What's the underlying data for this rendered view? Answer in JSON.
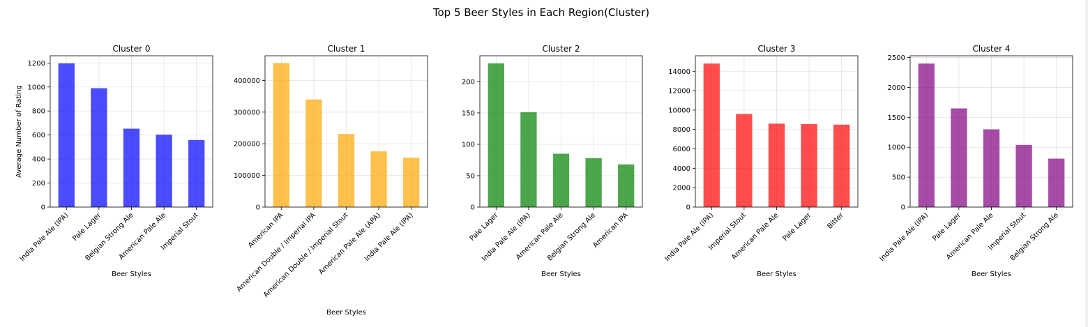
{
  "figure": {
    "title": "Top 5 Beer Styles in Each Region(Cluster)"
  },
  "chart_data": [
    {
      "type": "bar",
      "title": "Cluster 0",
      "xlabel": "Beer Styles",
      "ylabel": "Average Number of Rating",
      "color": "#0000ff",
      "ylim": [
        0,
        1260
      ],
      "yticks": [
        0,
        200,
        400,
        600,
        800,
        1000,
        1200
      ],
      "categories": [
        "India Pale Ale (IPA)",
        "Pale Lager",
        "Belgian Strong Ale",
        "American Pale Ale",
        "Imperial Stout"
      ],
      "values": [
        1197,
        990,
        653,
        603,
        558
      ],
      "grid": true
    },
    {
      "type": "bar",
      "title": "Cluster 1",
      "xlabel": "Beer Styles",
      "ylabel": "",
      "color": "#ffa500",
      "ylim": [
        0,
        478000
      ],
      "yticks": [
        0,
        100000,
        200000,
        300000,
        400000
      ],
      "categories": [
        "American IPA",
        "American Double / Imperial IPA",
        "American Double / Imperial Stout",
        "American Pale Ale (APA)",
        "India Pale Ale (IPA)"
      ],
      "values": [
        455000,
        340000,
        231000,
        176000,
        156000
      ],
      "grid": true
    },
    {
      "type": "bar",
      "title": "Cluster 2",
      "xlabel": "Beer Styles",
      "ylabel": "",
      "color": "#008000",
      "ylim": [
        0,
        241
      ],
      "yticks": [
        0,
        50,
        100,
        150,
        200
      ],
      "categories": [
        "Pale Lager",
        "India Pale Ale (IPA)",
        "American Pale Ale",
        "Belgian Strong Ale",
        "American IPA"
      ],
      "values": [
        229,
        151,
        85,
        78,
        68
      ],
      "grid": true
    },
    {
      "type": "bar",
      "title": "Cluster 3",
      "xlabel": "Beer Styles",
      "ylabel": "",
      "color": "#ff0000",
      "ylim": [
        0,
        15600
      ],
      "yticks": [
        0,
        2000,
        4000,
        6000,
        8000,
        10000,
        12000,
        14000
      ],
      "categories": [
        "India Pale Ale (IPA)",
        "Imperial Stout",
        "American Pale Ale",
        "Pale Lager",
        "Bitter"
      ],
      "values": [
        14800,
        9600,
        8600,
        8550,
        8500
      ],
      "grid": true
    },
    {
      "type": "bar",
      "title": "Cluster 4",
      "xlabel": "Beer Styles",
      "ylabel": "",
      "color": "#800080",
      "ylim": [
        0,
        2530
      ],
      "yticks": [
        0,
        500,
        1000,
        1500,
        2000,
        2500
      ],
      "categories": [
        "India Pale Ale (IPA)",
        "Pale Lager",
        "American Pale Ale",
        "Imperial Stout",
        "Belgian Strong Ale"
      ],
      "values": [
        2400,
        1650,
        1300,
        1040,
        810
      ],
      "grid": true
    }
  ]
}
